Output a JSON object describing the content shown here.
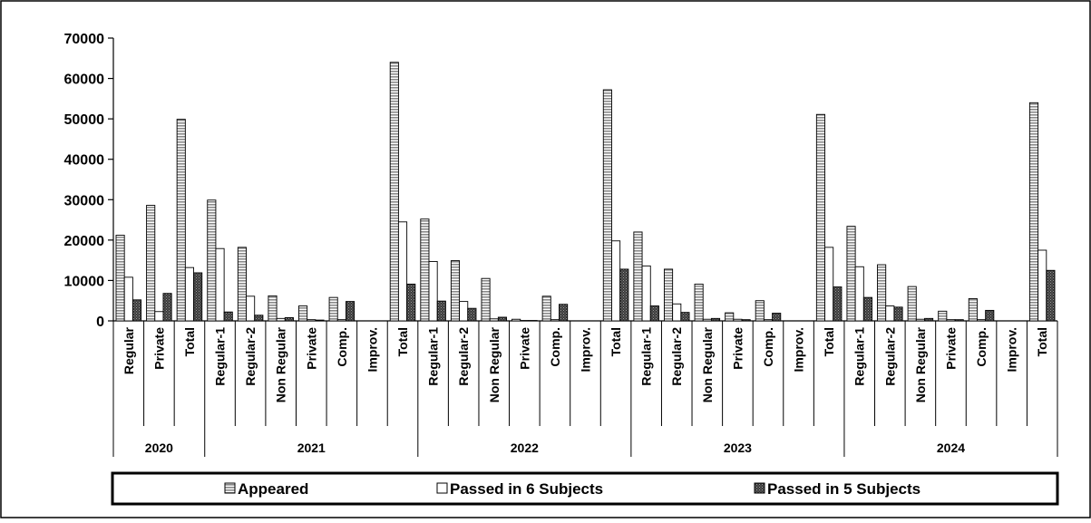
{
  "chart_data": {
    "type": "bar",
    "title": "",
    "xlabel": "",
    "ylabel": "",
    "ylim": [
      0,
      70000
    ],
    "yticks": [
      0,
      10000,
      20000,
      30000,
      40000,
      50000,
      60000,
      70000
    ],
    "grid": false,
    "legend_position": "bottom",
    "groups": [
      {
        "label": "2020",
        "categories": [
          "Regular",
          "Private",
          "Total"
        ]
      },
      {
        "label": "2021",
        "categories": [
          "Regular-1",
          "Regular-2",
          "Non Regular",
          "Private",
          "Comp.",
          "Improv.",
          "Total"
        ]
      },
      {
        "label": "2022",
        "categories": [
          "Regular-1",
          "Regular-2",
          "Non Regular",
          "Private",
          "Comp.",
          "Improv.",
          "Total"
        ]
      },
      {
        "label": "2023",
        "categories": [
          "Regular-1",
          "Regular-2",
          "Non Regular",
          "Private",
          "Comp.",
          "Improv.",
          "Total"
        ]
      },
      {
        "label": "2024",
        "categories": [
          "Regular-1",
          "Regular-2",
          "Non Regular",
          "Private",
          "Comp.",
          "Improv.",
          "Total"
        ]
      }
    ],
    "series": [
      {
        "name": "Appeared",
        "color": "#bfbfbf",
        "pattern": "horizontal-lines",
        "values": [
          21200,
          28600,
          49900,
          29900,
          18200,
          6200,
          3700,
          5800,
          0,
          64000,
          25200,
          14900,
          10500,
          400,
          6100,
          0,
          57200,
          22000,
          12800,
          9100,
          2000,
          5000,
          0,
          51100,
          23400,
          13900,
          8500,
          2400,
          5500,
          0,
          54000
        ]
      },
      {
        "name": "Passed in 6 Subjects",
        "color": "#ffffff",
        "pattern": "outline",
        "values": [
          10800,
          2300,
          13200,
          17900,
          6100,
          600,
          300,
          300,
          0,
          24500,
          14700,
          4800,
          500,
          100,
          300,
          0,
          19800,
          13600,
          4200,
          400,
          400,
          300,
          0,
          18200,
          13400,
          3700,
          400,
          300,
          300,
          0,
          17500
        ]
      },
      {
        "name": "Passed in 5 Subjects",
        "color": "#404040",
        "pattern": "dots",
        "values": [
          5200,
          6800,
          11900,
          2200,
          1400,
          800,
          200,
          4800,
          0,
          9100,
          4900,
          3100,
          900,
          100,
          4100,
          0,
          12800,
          3700,
          2100,
          600,
          300,
          1900,
          0,
          8400,
          5800,
          3400,
          600,
          300,
          2600,
          0,
          12500
        ]
      }
    ]
  }
}
